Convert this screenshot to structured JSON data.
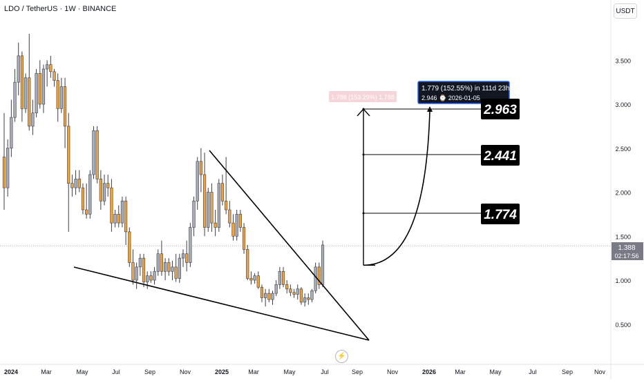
{
  "header": {
    "symbol_line": "LDO / TetherUS · 1W · BINANCE"
  },
  "currency_button": "USDT",
  "price_tag": {
    "price": "1.388",
    "countdown": "02:17:56"
  },
  "measure_box": {
    "line1": "1.779 (152.55%) in 111d 23h",
    "line2": "2.946 ⌚ 2026-01-05"
  },
  "ghost_label": "1.788 (153.29%) 1,788",
  "targets": [
    {
      "label": "2.963",
      "price": 2.963
    },
    {
      "label": "2.441",
      "price": 2.441
    },
    {
      "label": "1.774",
      "price": 1.774
    }
  ],
  "icons": {
    "bolt": "lightning-icon"
  },
  "chart_data": {
    "type": "candlestick",
    "interval": "1W",
    "y_axis": {
      "ticks": [
        "0.500",
        "1.000",
        "1.500",
        "2.000",
        "2.500",
        "3.000",
        "3.500"
      ],
      "tick_values": [
        0.5,
        1.0,
        1.5,
        2.0,
        2.5,
        3.0,
        3.5
      ]
    },
    "x_axis": {
      "ticks": [
        "2024",
        "Mar",
        "May",
        "Jul",
        "Sep",
        "Nov",
        "2025",
        "Mar",
        "May",
        "Jul",
        "Sep",
        "Nov",
        "2026",
        "Mar",
        "May",
        "Jul",
        "Sep",
        "Nov"
      ]
    },
    "colors": {
      "up": "#a9adb7",
      "down": "#f0a23b",
      "wick": "#3a3d46",
      "line": "#000000"
    },
    "candles": [
      [
        2.4,
        2.9,
        1.8,
        2.05
      ],
      [
        2.05,
        2.6,
        1.95,
        2.5
      ],
      [
        2.5,
        3.05,
        2.4,
        2.85
      ],
      [
        2.85,
        3.4,
        2.8,
        3.25
      ],
      [
        3.25,
        3.7,
        3.1,
        3.55
      ],
      [
        3.55,
        3.6,
        2.8,
        2.95
      ],
      [
        2.95,
        3.35,
        2.9,
        3.3
      ],
      [
        3.3,
        3.8,
        2.7,
        2.75
      ],
      [
        2.75,
        3.05,
        2.65,
        2.9
      ],
      [
        2.9,
        3.4,
        2.85,
        3.35
      ],
      [
        3.35,
        3.5,
        2.95,
        3.0
      ],
      [
        3.0,
        3.45,
        2.9,
        3.4
      ],
      [
        3.4,
        3.5,
        3.2,
        3.45
      ],
      [
        3.45,
        3.55,
        3.3,
        3.37
      ],
      [
        3.37,
        3.4,
        3.2,
        3.27
      ],
      [
        3.27,
        3.35,
        2.8,
        2.95
      ],
      [
        2.95,
        3.3,
        2.9,
        3.2
      ],
      [
        3.2,
        3.3,
        2.5,
        2.75
      ],
      [
        2.75,
        2.9,
        1.55,
        2.1
      ],
      [
        2.1,
        2.2,
        1.95,
        2.05
      ],
      [
        2.05,
        2.25,
        1.97,
        2.15
      ],
      [
        2.15,
        2.25,
        2.0,
        2.05
      ],
      [
        2.05,
        2.1,
        1.75,
        1.8
      ],
      [
        1.8,
        2.1,
        1.7,
        1.75
      ],
      [
        1.75,
        2.25,
        1.7,
        2.2
      ],
      [
        2.2,
        2.75,
        2.15,
        2.7
      ],
      [
        2.7,
        2.75,
        2.1,
        2.15
      ],
      [
        2.15,
        2.25,
        1.8,
        1.9
      ],
      [
        1.9,
        2.2,
        1.85,
        2.1
      ],
      [
        2.1,
        2.2,
        1.95,
        2.05
      ],
      [
        2.05,
        2.15,
        1.55,
        1.65
      ],
      [
        1.65,
        1.8,
        1.6,
        1.75
      ],
      [
        1.75,
        1.85,
        1.6,
        1.65
      ],
      [
        1.65,
        1.95,
        1.6,
        1.9
      ],
      [
        1.9,
        1.95,
        1.4,
        1.55
      ],
      [
        1.55,
        1.6,
        1.15,
        1.2
      ],
      [
        1.2,
        1.35,
        0.95,
        1.0
      ],
      [
        1.0,
        1.2,
        0.9,
        1.15
      ],
      [
        1.15,
        1.3,
        1.05,
        1.25
      ],
      [
        1.25,
        1.3,
        0.92,
        0.98
      ],
      [
        0.98,
        1.1,
        0.9,
        1.05
      ],
      [
        1.05,
        1.1,
        0.97,
        1.0
      ],
      [
        1.0,
        1.15,
        0.95,
        1.1
      ],
      [
        1.1,
        1.35,
        1.05,
        1.3
      ],
      [
        1.3,
        1.45,
        1.05,
        1.1
      ],
      [
        1.1,
        1.25,
        1.0,
        1.2
      ],
      [
        1.2,
        1.25,
        1.05,
        1.1
      ],
      [
        1.1,
        1.22,
        1.0,
        1.15
      ],
      [
        1.15,
        1.3,
        0.98,
        1.02
      ],
      [
        1.02,
        1.3,
        0.97,
        1.25
      ],
      [
        1.25,
        1.35,
        1.15,
        1.3
      ],
      [
        1.3,
        1.45,
        1.1,
        1.2
      ],
      [
        1.2,
        1.65,
        1.15,
        1.6
      ],
      [
        1.6,
        1.95,
        1.5,
        1.9
      ],
      [
        1.9,
        2.4,
        1.8,
        2.35
      ],
      [
        2.35,
        2.5,
        2.0,
        2.2
      ],
      [
        2.2,
        2.45,
        1.5,
        1.6
      ],
      [
        1.6,
        2.05,
        1.55,
        2.0
      ],
      [
        2.0,
        2.1,
        1.55,
        1.65
      ],
      [
        1.65,
        1.8,
        1.5,
        1.6
      ],
      [
        1.6,
        2.15,
        1.55,
        2.1
      ],
      [
        2.1,
        2.2,
        1.85,
        1.9
      ],
      [
        1.9,
        2.4,
        1.75,
        1.8
      ],
      [
        1.8,
        1.9,
        1.6,
        1.65
      ],
      [
        1.65,
        1.75,
        1.45,
        1.5
      ],
      [
        1.5,
        1.8,
        1.45,
        1.75
      ],
      [
        1.75,
        1.8,
        1.55,
        1.6
      ],
      [
        1.6,
        1.65,
        1.3,
        1.35
      ],
      [
        1.35,
        1.4,
        1.0,
        1.02
      ],
      [
        1.02,
        1.1,
        0.95,
        1.0
      ],
      [
        1.0,
        1.08,
        0.96,
        1.05
      ],
      [
        1.05,
        1.1,
        0.9,
        0.92
      ],
      [
        0.92,
        0.95,
        0.75,
        0.8
      ],
      [
        0.8,
        0.9,
        0.7,
        0.85
      ],
      [
        0.85,
        0.9,
        0.75,
        0.78
      ],
      [
        0.78,
        0.88,
        0.72,
        0.85
      ],
      [
        0.85,
        1.0,
        0.82,
        0.95
      ],
      [
        0.95,
        1.15,
        0.9,
        1.1
      ],
      [
        1.1,
        1.15,
        0.92,
        0.95
      ],
      [
        0.95,
        1.0,
        0.85,
        0.9
      ],
      [
        0.9,
        0.95,
        0.82,
        0.86
      ],
      [
        0.86,
        0.9,
        0.8,
        0.84
      ],
      [
        0.84,
        0.95,
        0.78,
        0.9
      ],
      [
        0.9,
        0.92,
        0.72,
        0.75
      ],
      [
        0.75,
        0.85,
        0.7,
        0.8
      ],
      [
        0.8,
        0.85,
        0.72,
        0.78
      ],
      [
        0.78,
        0.9,
        0.75,
        0.88
      ],
      [
        0.88,
        1.2,
        0.85,
        1.15
      ],
      [
        1.15,
        1.2,
        0.9,
        0.95
      ],
      [
        0.95,
        1.45,
        0.92,
        1.4
      ]
    ],
    "drawings": {
      "lower_trendline": [
        [
          "2024-02",
          1.17
        ],
        [
          "2025-09",
          0.48
        ]
      ],
      "upper_trendline": [
        [
          "2024-12",
          2.5
        ],
        [
          "2025-09",
          0.48
        ]
      ],
      "projection": {
        "from": 1.17,
        "to": 2.963,
        "target_date": "2026-01-05"
      }
    }
  }
}
